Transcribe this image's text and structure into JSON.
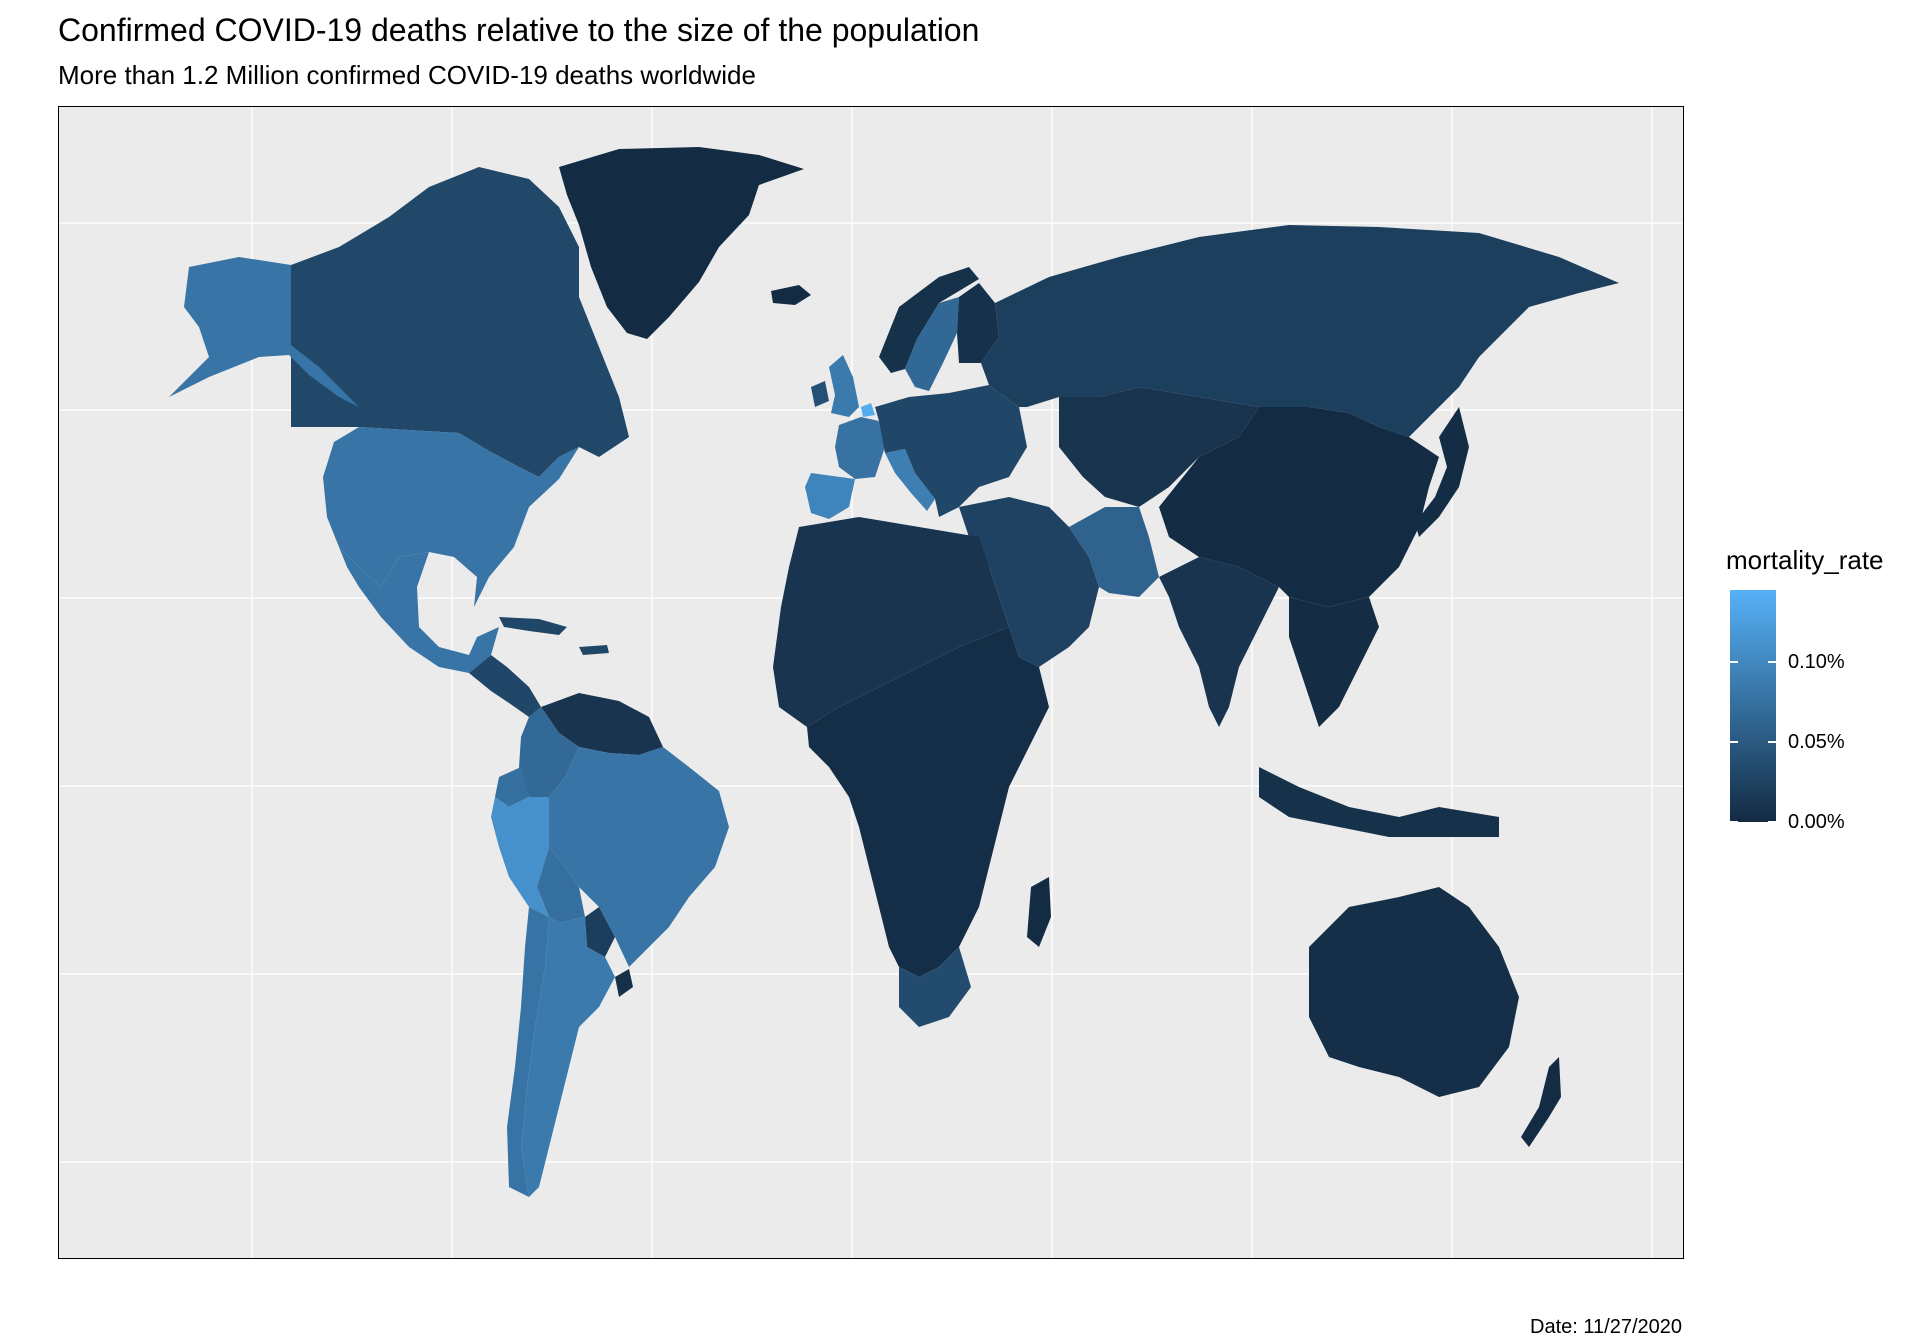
{
  "title": "Confirmed COVID-19 deaths relative to the size of the population",
  "subtitle": "More than 1.2 Million confirmed COVID-19 deaths worldwide",
  "caption": "Date: 11/27/2020",
  "legend": {
    "title": "mortality_rate",
    "ticks": [
      {
        "label": "0.10%",
        "value": 0.1
      },
      {
        "label": "0.05%",
        "value": 0.05
      },
      {
        "label": "0.00%",
        "value": 0.0
      }
    ],
    "range": [
      0.0,
      0.145
    ],
    "color_low": "#132b43",
    "color_high": "#56b1f7"
  },
  "colors": {
    "panel_background": "#ebebeb",
    "grid": "#ffffff"
  },
  "chart_data": {
    "type": "choropleth",
    "variable": "mortality_rate",
    "unit": "% of population",
    "grid": true,
    "legend_position": "right",
    "regions": [
      {
        "name": "Greenland",
        "value": 0.0
      },
      {
        "name": "Canada",
        "value": 0.031
      },
      {
        "name": "Alaska (United States)",
        "value": 0.08
      },
      {
        "name": "United States",
        "value": 0.08
      },
      {
        "name": "Mexico",
        "value": 0.08
      },
      {
        "name": "Central America",
        "value": 0.03
      },
      {
        "name": "Caribbean",
        "value": 0.03
      },
      {
        "name": "Venezuela / Guyana",
        "value": 0.01
      },
      {
        "name": "Colombia",
        "value": 0.067
      },
      {
        "name": "Ecuador",
        "value": 0.075
      },
      {
        "name": "Peru",
        "value": 0.11
      },
      {
        "name": "Brazil",
        "value": 0.08
      },
      {
        "name": "Bolivia",
        "value": 0.075
      },
      {
        "name": "Paraguay",
        "value": 0.02
      },
      {
        "name": "Chile",
        "value": 0.078
      },
      {
        "name": "Argentina",
        "value": 0.085
      },
      {
        "name": "Uruguay",
        "value": 0.005
      },
      {
        "name": "United Kingdom",
        "value": 0.085
      },
      {
        "name": "Ireland",
        "value": 0.04
      },
      {
        "name": "Belgium",
        "value": 0.14
      },
      {
        "name": "France",
        "value": 0.077
      },
      {
        "name": "Spain",
        "value": 0.096
      },
      {
        "name": "Italy",
        "value": 0.09
      },
      {
        "name": "Sweden",
        "value": 0.066
      },
      {
        "name": "Norway",
        "value": 0.006
      },
      {
        "name": "Finland",
        "value": 0.007
      },
      {
        "name": "Central and Eastern Europe",
        "value": 0.03
      },
      {
        "name": "Russia",
        "value": 0.022
      },
      {
        "name": "Kazakhstan and Central Asia",
        "value": 0.01
      },
      {
        "name": "Middle East",
        "value": 0.025
      },
      {
        "name": "Iran",
        "value": 0.06
      },
      {
        "name": "North Africa",
        "value": 0.01
      },
      {
        "name": "Sub-Saharan Africa",
        "value": 0.003
      },
      {
        "name": "South Africa",
        "value": 0.035
      },
      {
        "name": "Madagascar",
        "value": 0.001
      },
      {
        "name": "India",
        "value": 0.01
      },
      {
        "name": "China",
        "value": 0.0
      },
      {
        "name": "Southeast Asia",
        "value": 0.002
      },
      {
        "name": "Indonesia",
        "value": 0.006
      },
      {
        "name": "Japan",
        "value": 0.002
      },
      {
        "name": "Australia",
        "value": 0.004
      },
      {
        "name": "New Zealand",
        "value": 0.001
      }
    ]
  }
}
